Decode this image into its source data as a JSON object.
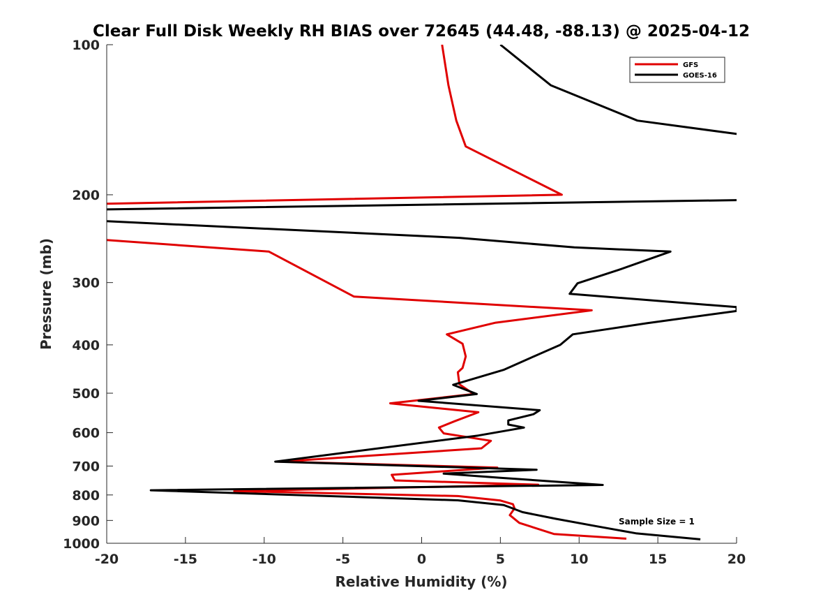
{
  "chart_data": {
    "type": "line",
    "title": "Clear Full Disk Weekly RH BIAS over 72645 (44.48, -88.13) @ 2025-04-12",
    "xlabel": "Relative Humidity (%)",
    "ylabel": "Pressure (mb)",
    "xlim": [
      -20,
      20
    ],
    "ylim": [
      100,
      1000
    ],
    "yscale": "log",
    "yreversed": true,
    "xticks": [
      -20,
      -15,
      -10,
      -5,
      0,
      5,
      10,
      15,
      20
    ],
    "xtick_labels": [
      "-20",
      "-15",
      "-10",
      "-5",
      "0",
      "5",
      "10",
      "15",
      "20"
    ],
    "yticks": [
      100,
      200,
      300,
      400,
      500,
      600,
      700,
      800,
      900,
      1000
    ],
    "ytick_labels": [
      "100",
      "200",
      "300",
      "400",
      "500",
      "600",
      "700",
      "800",
      "900",
      "1000"
    ],
    "grid": false,
    "legend_position": "top-right",
    "annotation": "Sample Size = 1",
    "series": [
      {
        "name": "GFS",
        "color": "#e00000",
        "points": [
          [
            1.3,
            100
          ],
          [
            1.7,
            120.6
          ],
          [
            2.2,
            142
          ],
          [
            2.8,
            160
          ],
          [
            8.9,
            200
          ],
          [
            -22,
            209
          ],
          [
            -22,
            244
          ],
          [
            -9.7,
            260
          ],
          [
            -4.3,
            320
          ],
          [
            10.8,
            341
          ],
          [
            4.7,
            361
          ],
          [
            1.6,
            381
          ],
          [
            2.6,
            398
          ],
          [
            2.8,
            422
          ],
          [
            2.6,
            445
          ],
          [
            2.3,
            454
          ],
          [
            2.4,
            480
          ],
          [
            3.3,
            502
          ],
          [
            -2.0,
            524
          ],
          [
            3.6,
            546
          ],
          [
            2.1,
            569
          ],
          [
            1.1,
            586
          ],
          [
            1.4,
            602
          ],
          [
            4.4,
            623
          ],
          [
            3.8,
            645
          ],
          [
            -9.0,
            686
          ],
          [
            4.8,
            705
          ],
          [
            -1.9,
            729
          ],
          [
            -1.7,
            748
          ],
          [
            7.4,
            763
          ],
          [
            -11.9,
            786
          ],
          [
            2.3,
            804
          ],
          [
            5.0,
            821
          ],
          [
            5.8,
            835
          ],
          [
            5.9,
            851
          ],
          [
            5.6,
            878
          ],
          [
            6.2,
            910
          ],
          [
            8.4,
            958
          ],
          [
            13.0,
            979
          ]
        ]
      },
      {
        "name": "GOES-16",
        "color": "#000000",
        "points": [
          [
            5.0,
            100
          ],
          [
            8.2,
            120.6
          ],
          [
            13.7,
            142
          ],
          [
            20.0,
            151
          ],
          [
            22,
            156
          ],
          [
            22,
            204
          ],
          [
            20.0,
            205
          ],
          [
            -20.0,
            214
          ],
          [
            -22,
            216
          ],
          [
            -22,
            224
          ],
          [
            -20.0,
            226
          ],
          [
            2.4,
            244
          ],
          [
            9.7,
            255
          ],
          [
            15.8,
            260
          ],
          [
            12.5,
            283
          ],
          [
            9.9,
            301
          ],
          [
            9.4,
            316
          ],
          [
            20.0,
            336
          ],
          [
            20.0,
            342
          ],
          [
            14.3,
            362
          ],
          [
            9.6,
            381
          ],
          [
            8.8,
            400
          ],
          [
            7.2,
            421
          ],
          [
            5.2,
            449
          ],
          [
            2.0,
            481
          ],
          [
            3.5,
            502
          ],
          [
            -0.2,
            518
          ],
          [
            7.5,
            541
          ],
          [
            7.1,
            551
          ],
          [
            5.5,
            567
          ],
          [
            5.5,
            578
          ],
          [
            6.5,
            586
          ],
          [
            3.6,
            608
          ],
          [
            -9.3,
            686
          ],
          [
            7.3,
            712
          ],
          [
            1.4,
            725
          ],
          [
            5.0,
            739
          ],
          [
            11.5,
            764
          ],
          [
            -17.2,
            783
          ],
          [
            2.3,
            820
          ],
          [
            5.2,
            838
          ],
          [
            5.6,
            847
          ],
          [
            6.4,
            866
          ],
          [
            8.5,
            893
          ],
          [
            11.0,
            923
          ],
          [
            13.6,
            955
          ],
          [
            17.7,
            982
          ]
        ]
      }
    ]
  }
}
